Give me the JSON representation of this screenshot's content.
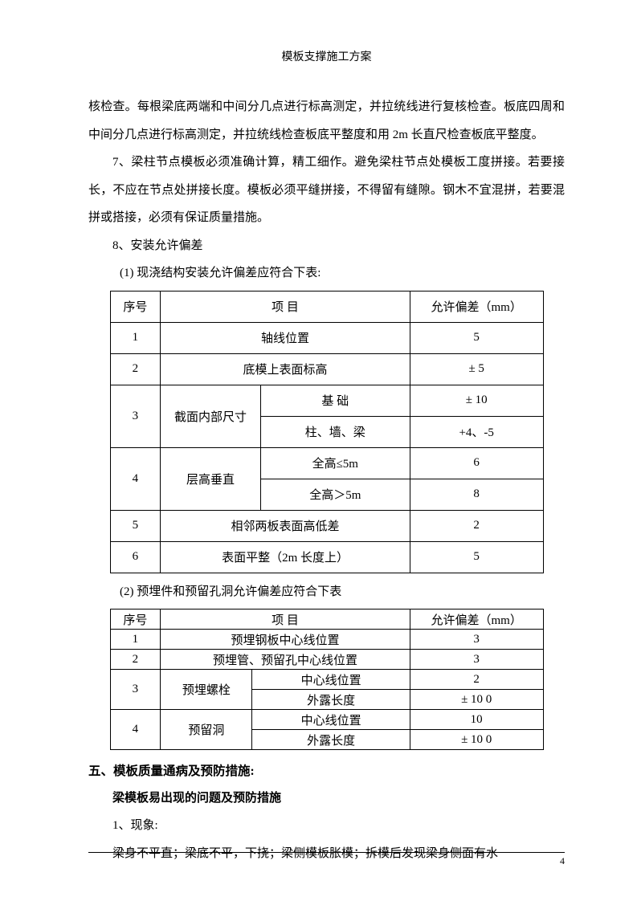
{
  "header": "模板支撑施工方案",
  "paragraphs": {
    "p1": "核检查。每根梁底两端和中间分几点进行标高测定，并拉统线进行复核检查。板底四周和中间分几点进行标高测定，并拉统线检查板底平整度和用 2m 长直尺检查板底平整度。",
    "p2": "7、梁柱节点模板必须准确计算，精工细作。避免梁柱节点处模板工度拼接。若要接长，不应在节点处拼接长度。模板必须平缝拼接，不得留有缝隙。钢木不宜混拼，若要混拼或搭接，必须有保证质量措施。",
    "p3": "8、安装允许偏差",
    "p4": "(1)  现浇结构安装允许偏差应符合下表:",
    "p5": "(2)  预埋件和预留孔洞允许偏差应符合下表"
  },
  "table1": {
    "header": {
      "seq": "序号",
      "item": "项          目",
      "tol": "允许偏差（mm）"
    },
    "rows": [
      {
        "seq": "1",
        "item": "轴线位置",
        "tol": "5",
        "colspan": 2
      },
      {
        "seq": "2",
        "item": "底模上表面标高",
        "tol": "± 5",
        "colspan": 2
      },
      {
        "seq": "3",
        "item1": "截面内部尺寸",
        "subs": [
          {
            "label": "基  础",
            "tol": "± 10"
          },
          {
            "label": "柱、墙、梁",
            "tol": "+4、-5"
          }
        ]
      },
      {
        "seq": "4",
        "item1": "层高垂直",
        "subs": [
          {
            "label": "全高≤5m",
            "tol": "6"
          },
          {
            "label": "全高＞5m",
            "tol": "8"
          }
        ]
      },
      {
        "seq": "5",
        "item": "相邻两板表面高低差",
        "tol": "2",
        "colspan": 2
      },
      {
        "seq": "6",
        "item": "表面平整（2m 长度上）",
        "tol": "5",
        "colspan": 2
      }
    ]
  },
  "table2": {
    "header": {
      "seq": "序号",
      "item": "项          目",
      "tol": "允许偏差（mm）"
    },
    "rows": [
      {
        "seq": "1",
        "item": "预埋钢板中心线位置",
        "tol": "3",
        "colspan": 2
      },
      {
        "seq": "2",
        "item": "预埋管、预留孔中心线位置",
        "tol": "3",
        "colspan": 2
      },
      {
        "seq": "3",
        "item1": "预埋螺栓",
        "subs": [
          {
            "label": "中心线位置",
            "tol": "2"
          },
          {
            "label": "外露长度",
            "tol": "± 10    0"
          }
        ]
      },
      {
        "seq": "4",
        "item1": "预留洞",
        "subs": [
          {
            "label": "中心线位置",
            "tol": "10"
          },
          {
            "label": "外露长度",
            "tol": "± 10    0"
          }
        ]
      }
    ]
  },
  "section5": {
    "title": "五、模板质量通病及预防措施:",
    "subtitle": "梁模板易出现的问题及预防措施",
    "item1": "1、现象:",
    "item1_text": "梁身不平直；梁底不平，下挠；梁侧模板胀模；拆模后发现梁身侧面有水"
  },
  "page_number": "4"
}
